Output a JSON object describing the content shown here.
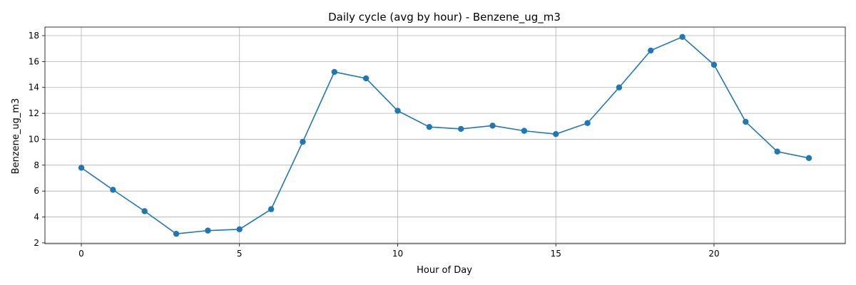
{
  "chart_data": {
    "type": "line",
    "title": "Daily cycle (avg by hour) - Benzene_ug_m3",
    "xlabel": "Hour of Day",
    "ylabel": "Benzene_ug_m3",
    "xlim": [
      -1.15,
      24.15
    ],
    "ylim": [
      1.94,
      18.66
    ],
    "xticks": [
      0,
      5,
      10,
      15,
      20
    ],
    "yticks": [
      2,
      4,
      6,
      8,
      10,
      12,
      14,
      16,
      18
    ],
    "grid": true,
    "line_color": "#1f77b4",
    "x": [
      0,
      1,
      2,
      3,
      4,
      5,
      6,
      7,
      8,
      9,
      10,
      11,
      12,
      13,
      14,
      15,
      16,
      17,
      18,
      19,
      20,
      21,
      22,
      23
    ],
    "values": [
      7.8,
      6.1,
      4.45,
      2.7,
      2.95,
      3.05,
      4.6,
      9.8,
      15.2,
      14.7,
      12.2,
      10.95,
      10.8,
      11.05,
      10.65,
      10.4,
      11.25,
      14.0,
      16.85,
      17.9,
      15.75,
      11.35,
      9.05,
      8.55
    ]
  }
}
